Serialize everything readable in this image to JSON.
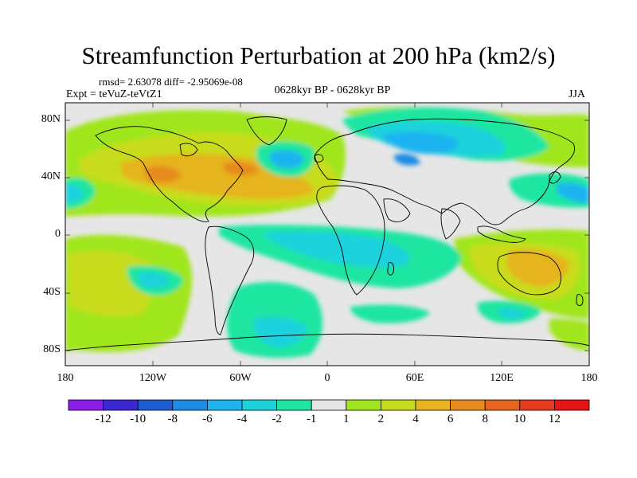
{
  "title": "Streamfunction Perturbation at 200 hPa (km2/s)",
  "stats_line": "rmsd= 2.63078 diff= -2.95069e-08",
  "experiment_label": "Expt = teVuZ-teVtZ1",
  "period_label": "0628kyr BP - 0628kyr BP",
  "season_label": "JJA",
  "lat_ticks": [
    "80N",
    "40N",
    "0",
    "40S",
    "80S"
  ],
  "lon_ticks": [
    "180",
    "120W",
    "60W",
    "0",
    "60E",
    "120E",
    "180"
  ],
  "colorbar": {
    "labels": [
      "-12",
      "-10",
      "-8",
      "-6",
      "-4",
      "-2",
      "-1",
      "1",
      "2",
      "4",
      "6",
      "8",
      "10",
      "12"
    ],
    "colors": [
      "#8a1ee6",
      "#3c28d2",
      "#1e5ad2",
      "#1e8ce6",
      "#1eb4f0",
      "#1ed2dc",
      "#1ee6a0",
      "#e6e6e6",
      "#a0e61e",
      "#c8dc1e",
      "#e6b41e",
      "#e68c1e",
      "#e6641e",
      "#e63c1e",
      "#e61414"
    ]
  }
}
